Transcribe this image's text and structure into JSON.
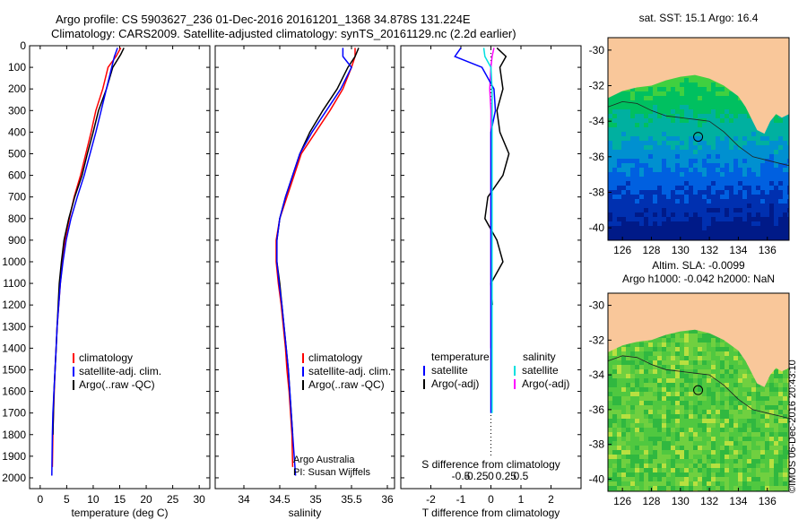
{
  "header": {
    "line1": "Argo profile: CS 5903627_236 01-Dec-2016 20161201_1368 34.878S 131.224E",
    "line2": "Climatology: CARS2009. Satellite-adjusted climatology: synTS_20161129.nc (2.2d earlier)"
  },
  "panels": {
    "temperature": {
      "xlabel": "temperature (deg C)",
      "xlim": [
        -2,
        32
      ],
      "xticks": [
        0,
        5,
        10,
        15,
        20,
        25,
        30
      ],
      "legend": [
        "climatology",
        "satellite-adj. clim.",
        "Argo(..raw -QC)"
      ]
    },
    "salinity": {
      "xlabel": "salinity",
      "xlim": [
        33.6,
        36.1
      ],
      "xticks": [
        34,
        34.5,
        35,
        35.5,
        36
      ],
      "legend": [
        "climatology",
        "satellite-adj. clim.",
        "Argo(..raw -QC)"
      ],
      "note1": "Argo Australia",
      "note2": "PI: Susan Wijffels"
    },
    "difference": {
      "xlabel_bottom": "T difference from climatology",
      "xlabel_top": "S difference from climatology",
      "xlim": [
        -3,
        3
      ],
      "xticks_bottom": [
        -2,
        -1,
        0,
        1,
        2
      ],
      "xticks_top_labels": [
        "-0.5",
        "-0.25",
        "0",
        "0.25",
        "0.5"
      ],
      "legend_t_title": "temperature",
      "legend_t": [
        "satellite",
        "Argo(-adj)"
      ],
      "legend_s_title": "salinity",
      "legend_s": [
        "satellite",
        "Argo(-adj)"
      ]
    }
  },
  "depth_axis": {
    "ylim": [
      2050,
      0
    ],
    "yticks": [
      0,
      100,
      200,
      300,
      400,
      500,
      600,
      700,
      800,
      900,
      1000,
      1100,
      1200,
      1300,
      1400,
      1500,
      1600,
      1700,
      1800,
      1900,
      2000
    ]
  },
  "maps": {
    "top_title": "sat. SST: 15.1  Argo: 16.4",
    "bottom_title1": "Altim. SLA: -0.0099",
    "bottom_title2": "Argo h1000: -0.042  h2000: NaN",
    "lon_ticks": [
      126,
      128,
      130,
      132,
      134,
      136
    ],
    "lat_ticks": [
      -30,
      -32,
      -34,
      -36,
      -38,
      -40
    ],
    "lon_range": [
      125,
      137.5
    ],
    "lat_range": [
      -40.7,
      -29.3
    ],
    "float_position": {
      "lon": 131.224,
      "lat": -34.878
    }
  },
  "credit": "©IMOS 06-Dec-2016 20:43:10",
  "colors": {
    "climatology": "#ff0000",
    "satellite": "#0000ff",
    "argo": "#000000",
    "sal_satellite": "#00e0e0",
    "sal_argo": "#ff00ff",
    "land": "#f9c79a"
  },
  "chart_data": [
    {
      "type": "line",
      "title": "",
      "xlabel": "temperature (deg C)",
      "ylabel": "",
      "ylim": [
        2050,
        0
      ],
      "series": [
        {
          "name": "climatology",
          "x": [
            15.2,
            14.3,
            12.8,
            11.8,
            10.5,
            9.6,
            8.6,
            7.6,
            6.4,
            5.5,
            4.7,
            4.2,
            3.8,
            3.5,
            3.2,
            3.0,
            2.8,
            2.65,
            2.5,
            2.4,
            2.3
          ],
          "y": [
            10,
            50,
            100,
            200,
            300,
            400,
            500,
            600,
            700,
            800,
            900,
            1000,
            1100,
            1200,
            1300,
            1400,
            1500,
            1600,
            1700,
            1800,
            1950
          ]
        },
        {
          "name": "satellite-adj. clim.",
          "x": [
            14.6,
            14.0,
            13.5,
            12.5,
            11.5,
            10.5,
            9.4,
            8.3,
            7.0,
            5.8,
            4.9,
            4.3,
            3.8,
            3.5,
            3.2,
            3.0,
            2.8,
            2.6,
            2.4,
            2.3,
            2.2
          ],
          "y": [
            10,
            50,
            100,
            200,
            300,
            400,
            500,
            600,
            700,
            800,
            900,
            1000,
            1100,
            1200,
            1300,
            1400,
            1500,
            1600,
            1700,
            1800,
            1990
          ]
        },
        {
          "name": "Argo(..raw -QC)",
          "x": [
            15.8,
            15.2,
            13.7,
            12.5,
            11.0,
            10.0,
            8.9,
            7.9,
            6.5,
            5.4,
            4.5,
            4.0,
            3.6,
            3.4,
            3.2,
            3.0,
            2.8,
            2.6,
            2.5,
            2.4
          ],
          "y": [
            10,
            40,
            100,
            200,
            300,
            400,
            500,
            600,
            700,
            800,
            900,
            1000,
            1100,
            1200,
            1300,
            1400,
            1500,
            1600,
            1700,
            1800
          ]
        }
      ]
    },
    {
      "type": "line",
      "title": "",
      "xlabel": "salinity",
      "ylabel": "",
      "ylim": [
        2050,
        0
      ],
      "series": [
        {
          "name": "climatology",
          "x": [
            35.55,
            35.55,
            35.5,
            35.38,
            35.2,
            35.0,
            34.8,
            34.7,
            34.6,
            34.5,
            34.45,
            34.45,
            34.48,
            34.52,
            34.55,
            34.58,
            34.6,
            34.63,
            34.65,
            34.67,
            34.68
          ],
          "y": [
            10,
            50,
            100,
            200,
            300,
            400,
            500,
            600,
            700,
            800,
            900,
            1000,
            1100,
            1200,
            1300,
            1400,
            1500,
            1600,
            1700,
            1800,
            1950
          ]
        },
        {
          "name": "satellite-adj. clim.",
          "x": [
            35.38,
            35.38,
            35.5,
            35.35,
            35.15,
            34.95,
            34.78,
            34.68,
            34.58,
            34.5,
            34.46,
            34.46,
            34.49,
            34.53,
            34.56,
            34.59,
            34.62,
            34.64,
            34.66,
            34.68,
            34.72
          ],
          "y": [
            10,
            50,
            100,
            200,
            300,
            400,
            500,
            600,
            700,
            800,
            900,
            1000,
            1100,
            1200,
            1300,
            1400,
            1500,
            1600,
            1700,
            1800,
            1990
          ]
        },
        {
          "name": "Argo(..raw -QC)",
          "x": [
            35.6,
            35.55,
            35.45,
            35.3,
            35.1,
            34.92,
            34.78,
            34.68,
            34.58,
            34.5,
            34.46,
            34.46,
            34.5,
            34.53,
            34.56,
            34.59,
            34.62,
            34.64,
            34.66,
            34.68
          ],
          "y": [
            10,
            50,
            100,
            200,
            300,
            400,
            500,
            600,
            700,
            800,
            900,
            1000,
            1100,
            1200,
            1300,
            1400,
            1500,
            1600,
            1700,
            1800
          ]
        }
      ]
    },
    {
      "type": "line",
      "title": "",
      "xlabel": "T difference from climatology",
      "ylabel": "",
      "ylim": [
        2050,
        0
      ],
      "series": [
        {
          "name": "satellite",
          "x": [
            -1.0,
            -1.2,
            -0.3,
            0.1,
            0.15,
            0.0,
            0.0,
            0.0,
            0.0,
            0.0,
            0.0,
            0.0,
            0.0,
            0.0,
            0.0,
            0.0,
            0.0,
            0.0,
            0.0
          ],
          "y": [
            10,
            50,
            100,
            200,
            300,
            400,
            500,
            600,
            700,
            800,
            900,
            1000,
            1100,
            1200,
            1300,
            1400,
            1500,
            1600,
            1700
          ]
        },
        {
          "name": "Argo(-adj)",
          "x": [
            0.2,
            0.5,
            0.3,
            0.4,
            0.2,
            0.3,
            0.6,
            0.4,
            -0.1,
            -0.2,
            0.2,
            0.4,
            0.0,
            0.05
          ],
          "y": [
            10,
            50,
            100,
            200,
            300,
            400,
            500,
            600,
            700,
            800,
            900,
            1000,
            1100,
            1200
          ]
        }
      ]
    },
    {
      "type": "line",
      "title": "",
      "xlabel": "S difference from climatology",
      "ylabel": "",
      "ylim": [
        2050,
        0
      ],
      "series": [
        {
          "name": "satellite",
          "x": [
            -0.12,
            -0.1,
            0.0,
            0.02,
            0.02,
            0.02,
            0.02,
            0.02,
            0.02,
            0.02,
            0.02,
            0.02,
            0.02,
            0.02,
            0.02,
            0.02,
            0.02,
            0.02
          ],
          "y": [
            10,
            50,
            100,
            200,
            300,
            400,
            500,
            600,
            700,
            800,
            900,
            1000,
            1100,
            1200,
            1300,
            1400,
            1500,
            1700
          ]
        },
        {
          "name": "Argo(-adj)",
          "x": [
            0.05,
            0.02,
            0.0,
            -0.02,
            0.0,
            0.0,
            0.0,
            0.0,
            0.0,
            0.0,
            0.0,
            0.0,
            0.0,
            0.0,
            0.0,
            0.0
          ],
          "y": [
            10,
            50,
            100,
            200,
            300,
            400,
            500,
            600,
            700,
            800,
            900,
            1000,
            1100,
            1200,
            1300,
            1400
          ]
        }
      ]
    }
  ]
}
